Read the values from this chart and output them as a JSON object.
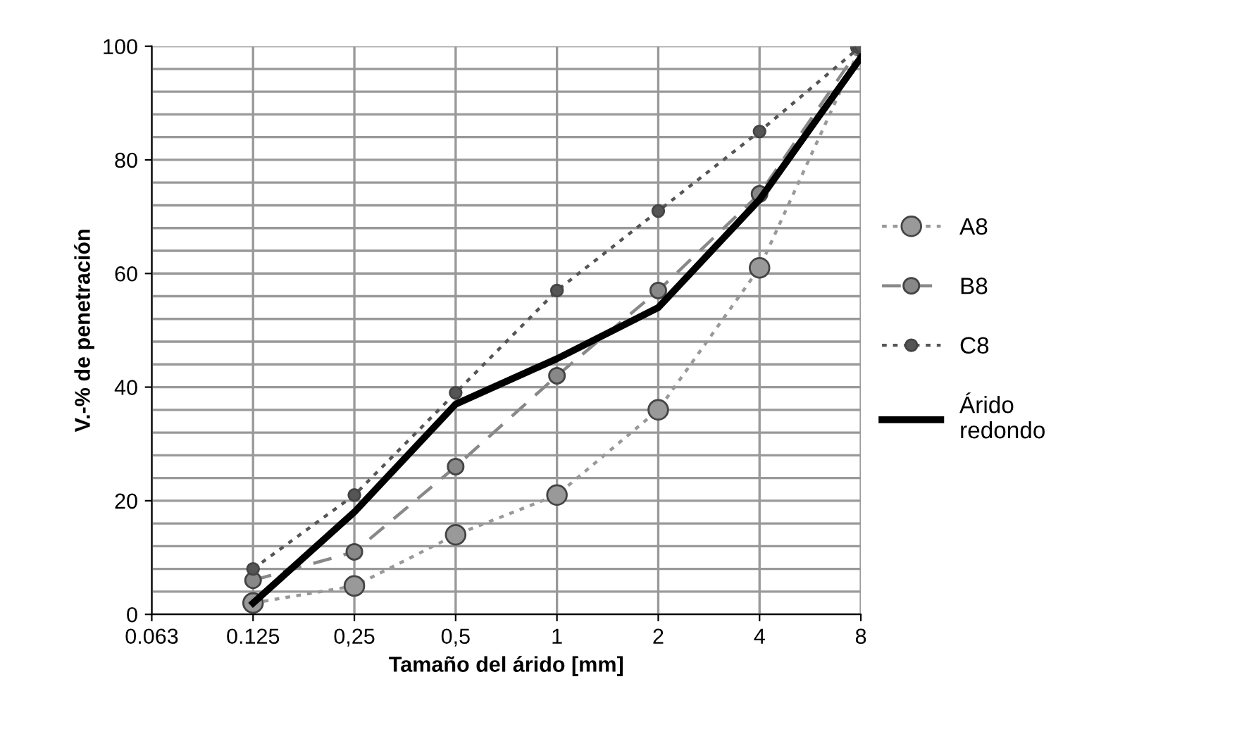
{
  "chart_data": {
    "type": "line",
    "xlabel": "Tamaño del árido [mm]",
    "ylabel": "V.-% de penetración",
    "categories": [
      "0.063",
      "0.125",
      "0,25",
      "0,5",
      "1",
      "2",
      "4",
      "8"
    ],
    "ylim": [
      0,
      100
    ],
    "yticks": [
      0,
      {
        "value": 4,
        "label": null
      },
      {
        "value": 8,
        "label": null
      },
      {
        "value": 12,
        "label": null
      },
      {
        "value": 16,
        "label": null
      },
      20,
      {
        "value": 24,
        "label": null
      },
      {
        "value": 28,
        "label": null
      },
      {
        "value": 32,
        "label": null
      },
      {
        "value": 36,
        "label": null
      },
      40,
      {
        "value": 44,
        "label": null
      },
      {
        "value": 48,
        "label": null
      },
      {
        "value": 52,
        "label": null
      },
      {
        "value": 56,
        "label": null
      },
      60,
      {
        "value": 64,
        "label": null
      },
      {
        "value": 68,
        "label": null
      },
      {
        "value": 72,
        "label": null
      },
      {
        "value": 76,
        "label": null
      },
      80,
      {
        "value": 84,
        "label": null
      },
      {
        "value": 88,
        "label": null
      },
      {
        "value": 92,
        "label": null
      },
      {
        "value": 96,
        "label": null
      },
      100
    ],
    "grid": true,
    "legend": "right",
    "series": [
      {
        "name": "A8",
        "color": "#999999",
        "marker": "circle",
        "line_style": "dotted",
        "values": [
          null,
          2,
          5,
          14,
          21,
          36,
          61,
          100
        ]
      },
      {
        "name": "B8",
        "color": "#888888",
        "marker": "circle",
        "line_style": "dashed",
        "values": [
          null,
          6,
          11,
          26,
          42,
          57,
          74,
          100
        ]
      },
      {
        "name": "C8",
        "color": "#555555",
        "marker": "circle",
        "line_style": "dotted",
        "values": [
          null,
          8,
          21,
          39,
          57,
          71,
          85,
          100
        ]
      },
      {
        "name": "Árido\nredondo",
        "color": "#000000",
        "marker": "none",
        "line_style": "solid",
        "values": [
          null,
          2,
          18,
          37,
          45,
          54,
          73,
          98
        ]
      }
    ]
  }
}
